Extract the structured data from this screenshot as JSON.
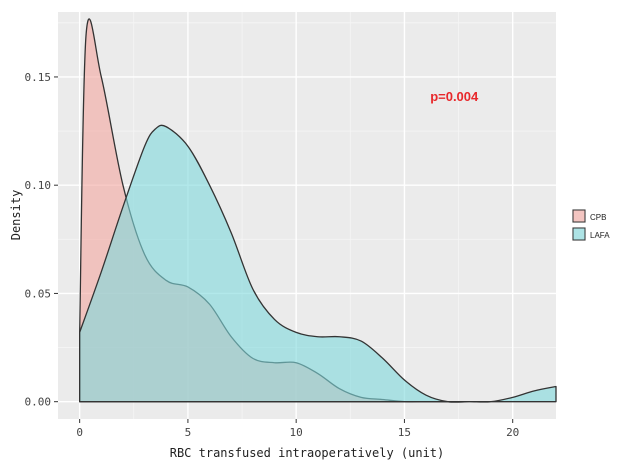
{
  "chart_data": {
    "type": "area",
    "xlabel": "RBC transfused intraoperatively (unit)",
    "ylabel": "Density",
    "xlim": [
      -1,
      22
    ],
    "ylim": [
      -0.008,
      0.18
    ],
    "x_ticks": [
      0,
      5,
      10,
      15,
      20
    ],
    "x_tick_labels": [
      "0",
      "5",
      "10",
      "15",
      "20"
    ],
    "y_ticks": [
      0.0,
      0.05,
      0.1,
      0.15
    ],
    "y_tick_labels": [
      "0.00",
      "0.05",
      "0.10",
      "0.15"
    ],
    "grid": true,
    "legend": {
      "placement": "right"
    },
    "annotation": {
      "text": "p=0.004",
      "x": 17.3,
      "y": 0.139,
      "color": "#e8282b"
    },
    "series": [
      {
        "name": "CPB",
        "color": "#f4a6a0",
        "x": [
          0,
          0.3,
          1,
          2,
          3,
          4,
          5,
          6,
          7,
          8,
          9,
          10,
          11,
          12,
          13,
          14,
          15,
          16,
          17
        ],
        "y": [
          0.032,
          0.17,
          0.15,
          0.1,
          0.068,
          0.056,
          0.053,
          0.045,
          0.03,
          0.02,
          0.018,
          0.018,
          0.013,
          0.006,
          0.002,
          0.001,
          0.0,
          0.0,
          0.0
        ]
      },
      {
        "name": "LAFA",
        "color": "#7fd9dc",
        "x": [
          0,
          1,
          2,
          3,
          3.5,
          4,
          5,
          6,
          7,
          8,
          9,
          10,
          11,
          12,
          13,
          14,
          15,
          16,
          17,
          18,
          19,
          20,
          21,
          22
        ],
        "y": [
          0.032,
          0.06,
          0.09,
          0.118,
          0.126,
          0.127,
          0.118,
          0.1,
          0.078,
          0.052,
          0.038,
          0.032,
          0.03,
          0.03,
          0.028,
          0.02,
          0.01,
          0.003,
          0.0,
          0.0,
          0.0,
          0.002,
          0.005,
          0.007
        ]
      }
    ]
  }
}
